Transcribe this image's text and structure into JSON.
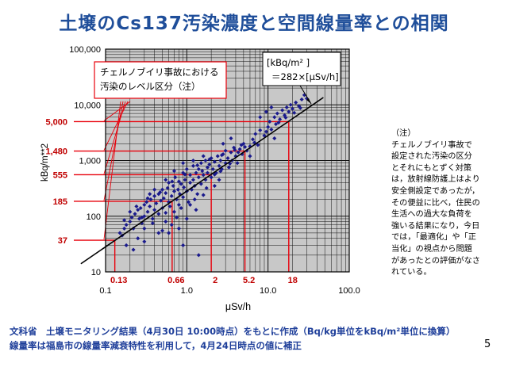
{
  "slide": {
    "title": "土壌のCs137汚染濃度と空間線量率との相関",
    "page_number": "5"
  },
  "note": {
    "heading": "（注）",
    "body": "チェルノブイリ事故で設定された汚染の区分とそれにもとずく対策は，放射線防護上はより安全側設定であったが，その便益に比べ，住民の生活への過大な負荷を強いる結果になり，今日では，「最適化」や「正当化」の視点から問題があったとの評価がなされている。"
  },
  "footer": {
    "line1": "文科省　土壌モニタリング結果（4月30日 10:00時点）をもとに作成（Bq/kg単位をkBq/m²単位に換算）",
    "line2": "線量率は福島市の線量率減衰特性を利用して，4月24日時点の値に補正"
  },
  "chart_data": {
    "type": "scatter",
    "xlabel": "μSv/h",
    "ylabel": "kBq/m**2",
    "x_scale": "log",
    "y_scale": "log",
    "xlim": [
      0.1,
      100
    ],
    "ylim": [
      10,
      100000
    ],
    "x_ticks": [
      "0.1",
      "1.0",
      "10.0",
      "100.0"
    ],
    "y_ticks": [
      "10",
      "100",
      "1,000",
      "10,000",
      "100,000"
    ],
    "grid": true,
    "regression_line": {
      "slope": 282,
      "label_line1": "[kBq/m² ]",
      "label_line2": "＝282×[μSv/h]"
    },
    "legend_box_text": [
      "チェルノブイリ事故における",
      "汚染のレベル区分（注）"
    ],
    "threshold_levels_y": [
      {
        "value": 37,
        "label": "37"
      },
      {
        "value": 185,
        "label": "185"
      },
      {
        "value": 555,
        "label": "555"
      },
      {
        "value": 1480,
        "label": "1,480"
      },
      {
        "value": 5000,
        "label": "5,000"
      }
    ],
    "threshold_levels_x": [
      {
        "value": 0.13,
        "label": "0.13"
      },
      {
        "value": 0.66,
        "label": "0.66"
      },
      {
        "value": 2,
        "label": "2"
      },
      {
        "value": 5.2,
        "label": "5.2"
      },
      {
        "value": 18,
        "label": "18"
      }
    ],
    "colors": {
      "points": "#1a1a8c",
      "threshold": "#e8000b",
      "threshold_label": "#c00000",
      "fit_line": "#000000",
      "title": "#1f4e9a"
    },
    "points": [
      [
        0.15,
        50
      ],
      [
        0.16,
        45
      ],
      [
        0.17,
        60
      ],
      [
        0.18,
        70
      ],
      [
        0.2,
        80
      ],
      [
        0.21,
        95
      ],
      [
        0.22,
        60
      ],
      [
        0.23,
        110
      ],
      [
        0.25,
        130
      ],
      [
        0.26,
        90
      ],
      [
        0.27,
        140
      ],
      [
        0.28,
        75
      ],
      [
        0.3,
        160
      ],
      [
        0.3,
        100
      ],
      [
        0.32,
        180
      ],
      [
        0.33,
        120
      ],
      [
        0.35,
        150
      ],
      [
        0.36,
        200
      ],
      [
        0.38,
        90
      ],
      [
        0.4,
        230
      ],
      [
        0.4,
        130
      ],
      [
        0.42,
        170
      ],
      [
        0.45,
        250
      ],
      [
        0.45,
        110
      ],
      [
        0.48,
        190
      ],
      [
        0.5,
        300
      ],
      [
        0.5,
        140
      ],
      [
        0.52,
        210
      ],
      [
        0.55,
        260
      ],
      [
        0.55,
        80
      ],
      [
        0.58,
        320
      ],
      [
        0.6,
        180
      ],
      [
        0.6,
        400
      ],
      [
        0.62,
        150
      ],
      [
        0.65,
        230
      ],
      [
        0.68,
        350
      ],
      [
        0.7,
        120
      ],
      [
        0.7,
        280
      ],
      [
        0.72,
        500
      ],
      [
        0.75,
        200
      ],
      [
        0.78,
        300
      ],
      [
        0.8,
        420
      ],
      [
        0.8,
        160
      ],
      [
        0.82,
        250
      ],
      [
        0.85,
        380
      ],
      [
        0.9,
        600
      ],
      [
        0.9,
        220
      ],
      [
        0.92,
        330
      ],
      [
        0.95,
        450
      ],
      [
        1.0,
        280
      ],
      [
        1.0,
        700
      ],
      [
        1.05,
        180
      ],
      [
        1.1,
        400
      ],
      [
        1.1,
        550
      ],
      [
        1.15,
        300
      ],
      [
        1.2,
        800
      ],
      [
        1.2,
        450
      ],
      [
        1.25,
        350
      ],
      [
        1.3,
        600
      ],
      [
        1.35,
        250
      ],
      [
        1.4,
        700
      ],
      [
        1.4,
        500
      ],
      [
        1.5,
        900
      ],
      [
        1.5,
        380
      ],
      [
        1.55,
        650
      ],
      [
        1.6,
        550
      ],
      [
        1.7,
        1000
      ],
      [
        1.7,
        450
      ],
      [
        1.8,
        750
      ],
      [
        1.8,
        600
      ],
      [
        1.9,
        850
      ],
      [
        2.0,
        500
      ],
      [
        2.0,
        1100
      ],
      [
        2.1,
        700
      ],
      [
        2.2,
        950
      ],
      [
        2.3,
        600
      ],
      [
        2.4,
        1200
      ],
      [
        2.5,
        800
      ],
      [
        2.6,
        1000
      ],
      [
        2.7,
        700
      ],
      [
        2.8,
        1300
      ],
      [
        3.0,
        900
      ],
      [
        3.0,
        1500
      ],
      [
        3.2,
        1100
      ],
      [
        3.3,
        750
      ],
      [
        3.5,
        1400
      ],
      [
        3.6,
        1000
      ],
      [
        3.8,
        1700
      ],
      [
        4.0,
        1200
      ],
      [
        4.2,
        900
      ],
      [
        4.5,
        1600
      ],
      [
        4.8,
        1300
      ],
      [
        5.0,
        2000
      ],
      [
        5.5,
        1500
      ],
      [
        6.0,
        1800
      ],
      [
        6.5,
        2400
      ],
      [
        7.0,
        3000
      ],
      [
        8.0,
        3500
      ],
      [
        9.0,
        2800
      ],
      [
        10.0,
        4000
      ],
      [
        10.5,
        5000
      ],
      [
        11.0,
        3600
      ],
      [
        12.0,
        6000
      ],
      [
        12.5,
        4500
      ],
      [
        13.0,
        7000
      ],
      [
        14.0,
        5500
      ],
      [
        15.0,
        8000
      ],
      [
        16.0,
        6500
      ],
      [
        17.0,
        9000
      ],
      [
        18.0,
        7500
      ],
      [
        19.0,
        10000
      ],
      [
        20.0,
        8500
      ],
      [
        22.0,
        11000
      ],
      [
        24.0,
        9500
      ],
      [
        26.0,
        12500
      ],
      [
        28.0,
        15000
      ],
      [
        30.0,
        13000
      ],
      [
        0.25,
        40
      ],
      [
        0.3,
        35
      ],
      [
        0.5,
        55
      ],
      [
        0.6,
        50
      ],
      [
        0.8,
        60
      ],
      [
        1.0,
        90
      ],
      [
        1.3,
        130
      ],
      [
        0.4,
        300
      ],
      [
        0.35,
        250
      ],
      [
        0.55,
        450
      ],
      [
        0.7,
        650
      ],
      [
        0.9,
        900
      ],
      [
        2.2,
        350
      ],
      [
        2.5,
        450
      ],
      [
        1.6,
        1200
      ],
      [
        1.2,
        1000
      ],
      [
        3.5,
        2500
      ],
      [
        2.8,
        2000
      ],
      [
        8.0,
        6000
      ],
      [
        9.5,
        7500
      ],
      [
        11.0,
        9000
      ],
      [
        12.0,
        2500
      ],
      [
        7.5,
        1900
      ],
      [
        6.0,
        1200
      ],
      [
        0.2,
        120
      ],
      [
        0.18,
        30
      ],
      [
        0.22,
        25
      ],
      [
        1.4,
        20
      ],
      [
        0.9,
        30
      ],
      [
        0.45,
        50
      ],
      [
        0.65,
        70
      ],
      [
        0.75,
        95
      ],
      [
        1.1,
        160
      ],
      [
        1.6,
        240
      ],
      [
        0.3,
        60
      ],
      [
        0.38,
        75
      ],
      [
        0.28,
        95
      ],
      [
        0.55,
        115
      ],
      [
        0.85,
        140
      ],
      [
        1.25,
        200
      ],
      [
        1.75,
        320
      ],
      [
        2.2,
        560
      ],
      [
        2.6,
        640
      ],
      [
        3.4,
        880
      ],
      [
        4.3,
        1400
      ],
      [
        5.2,
        1750
      ],
      [
        6.8,
        2100
      ],
      [
        9.5,
        3300
      ],
      [
        13.5,
        4800
      ],
      [
        16.5,
        5900
      ],
      [
        21.0,
        7200
      ],
      [
        25.0,
        8800
      ],
      [
        0.17,
        85
      ],
      [
        0.24,
        150
      ],
      [
        0.33,
        210
      ],
      [
        0.47,
        270
      ],
      [
        0.66,
        420
      ],
      [
        0.95,
        560
      ],
      [
        1.35,
        820
      ],
      [
        1.9,
        1050
      ],
      [
        2.7,
        1250
      ],
      [
        3.9,
        1550
      ],
      [
        4.7,
        1900
      ]
    ]
  }
}
